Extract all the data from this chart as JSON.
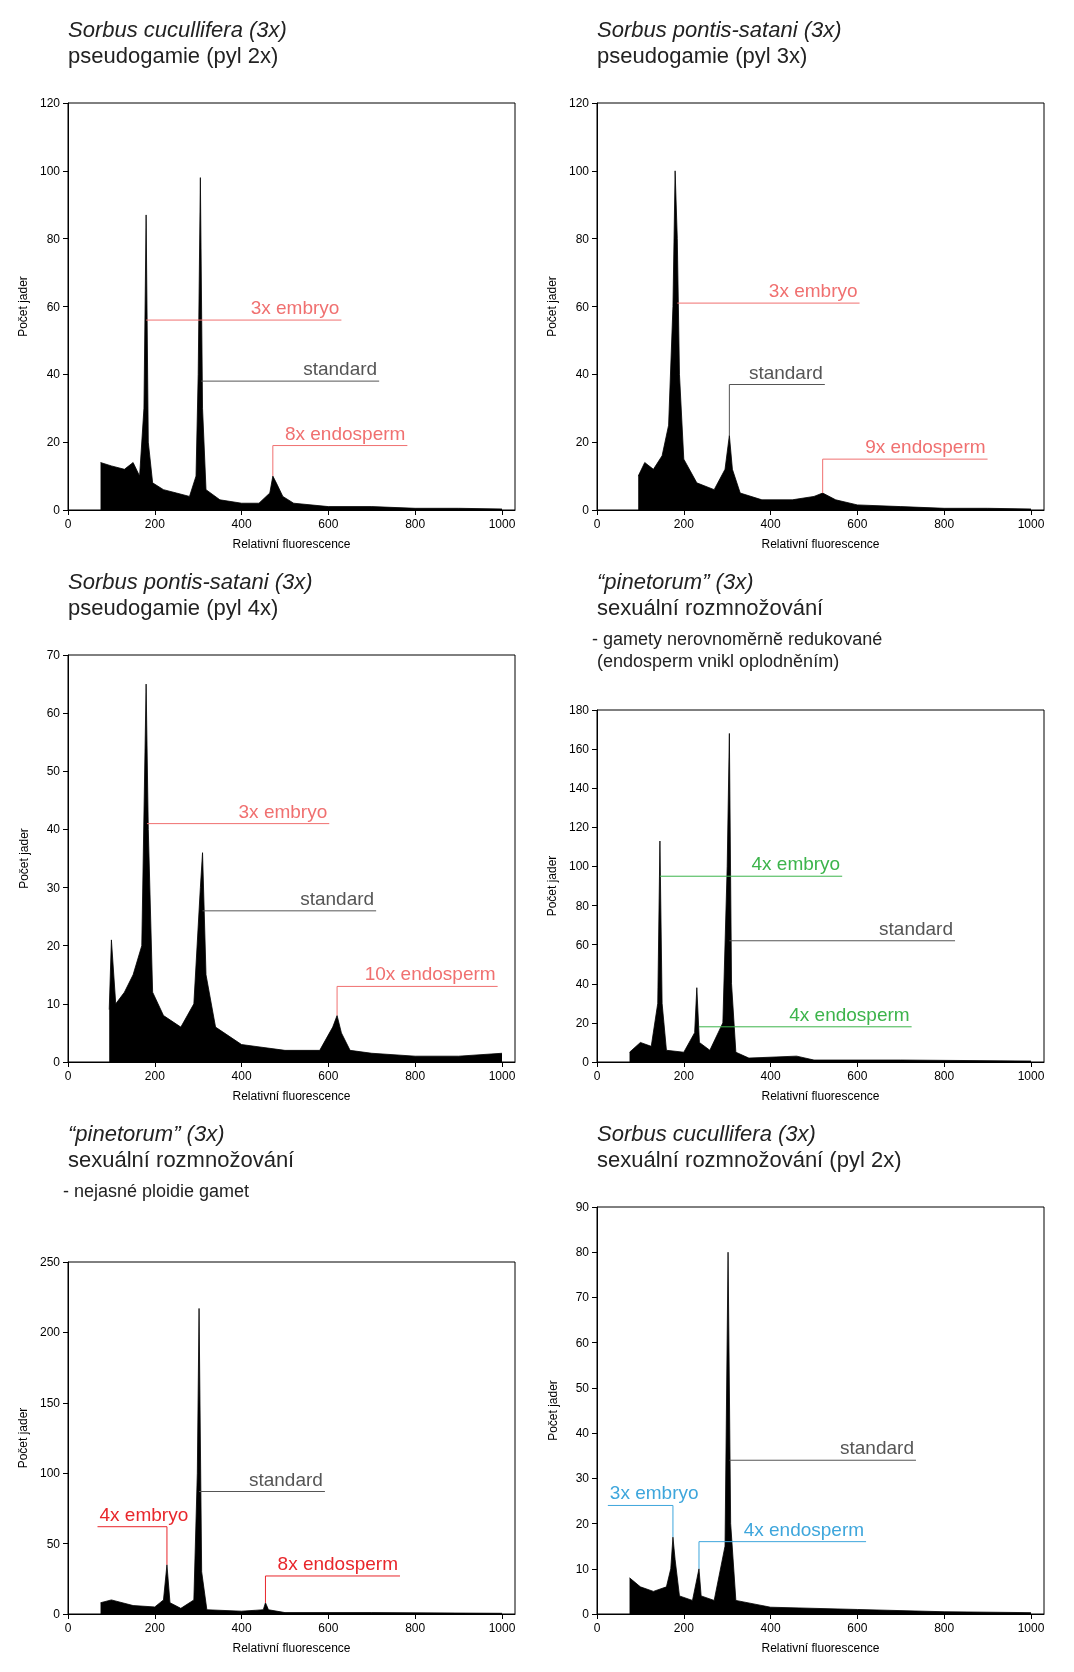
{
  "chart_data": [
    {
      "type": "area",
      "title": "Sorbus cucullifera (3x)",
      "subtitle": "pseudogamie (pyl 2x)",
      "xlabel": "Relativní fluorescence",
      "ylabel": "Počet jader",
      "xlim": [
        0,
        1030
      ],
      "xticks": [
        0,
        200,
        400,
        600,
        800,
        1000
      ],
      "ylim": [
        0,
        120
      ],
      "yticks": [
        0,
        20,
        40,
        60,
        80,
        100,
        120
      ],
      "grid": false,
      "marker": "none",
      "color": "#000000",
      "x": [
        75,
        100,
        130,
        150,
        165,
        175,
        180,
        185,
        195,
        220,
        250,
        280,
        295,
        300,
        305,
        310,
        318,
        350,
        400,
        440,
        465,
        472,
        480,
        495,
        520,
        600,
        700,
        800,
        900,
        1000
      ],
      "values": [
        14,
        13,
        12,
        14,
        10,
        30,
        87,
        20,
        8,
        6,
        5,
        4,
        10,
        40,
        98,
        30,
        6,
        3,
        2,
        2,
        5,
        10,
        8,
        4,
        2,
        1,
        1,
        0.5,
        0.5,
        0.3
      ],
      "annotations": [
        {
          "text": "3x embryo",
          "x": 180,
          "y": 56
        },
        {
          "text": "standard",
          "x": 307,
          "y": 38
        },
        {
          "text": "8x endosperm",
          "x": 472,
          "y": 10
        }
      ]
    },
    {
      "type": "area",
      "title": "Sorbus pontis-satani (3x)",
      "subtitle": "pseudogamie (pyl 3x)",
      "xlabel": "Relativní fluorescence",
      "ylabel": "Počet jader",
      "xlim": [
        0,
        1030
      ],
      "xticks": [
        0,
        200,
        400,
        600,
        800,
        1000
      ],
      "ylim": [
        0,
        120
      ],
      "yticks": [
        0,
        20,
        40,
        60,
        80,
        100,
        120
      ],
      "grid": false,
      "marker": "none",
      "color": "#000000",
      "x": [
        95,
        110,
        130,
        150,
        165,
        175,
        180,
        185,
        190,
        200,
        230,
        270,
        295,
        305,
        312,
        330,
        380,
        450,
        500,
        520,
        550,
        600,
        700,
        800,
        900,
        1000
      ],
      "values": [
        10,
        14,
        12,
        16,
        25,
        60,
        100,
        80,
        40,
        15,
        8,
        6,
        12,
        22,
        12,
        5,
        3,
        3,
        4,
        5,
        3,
        1.5,
        1,
        0.5,
        0.5,
        0.3
      ],
      "annotations": [
        {
          "text": "3x embryo",
          "x": 185,
          "y": 61
        },
        {
          "text": "standard",
          "x": 305,
          "y": 22
        },
        {
          "text": "9x endosperm",
          "x": 520,
          "y": 5
        }
      ]
    },
    {
      "type": "area",
      "title": "Sorbus pontis-satani (3x)",
      "subtitle": "pseudogamie (pyl 4x)",
      "xlabel": "Relativní fluorescence",
      "ylabel": "Počet jader",
      "xlim": [
        0,
        1030
      ],
      "xticks": [
        0,
        200,
        400,
        600,
        800,
        1000
      ],
      "ylim": [
        0,
        70
      ],
      "yticks": [
        0,
        10,
        20,
        30,
        40,
        50,
        60,
        70
      ],
      "grid": false,
      "marker": "none",
      "color": "#000000",
      "x": [
        95,
        100,
        110,
        130,
        150,
        170,
        180,
        185,
        195,
        220,
        260,
        290,
        305,
        310,
        318,
        340,
        400,
        500,
        580,
        610,
        620,
        630,
        650,
        700,
        800,
        900,
        1000
      ],
      "values": [
        9,
        21,
        10,
        12,
        15,
        20,
        65,
        40,
        12,
        8,
        6,
        10,
        30,
        36,
        15,
        6,
        3,
        2,
        2,
        6,
        8,
        5,
        2,
        1.5,
        1,
        1,
        1.5
      ],
      "annotations": [
        {
          "text": "3x embryo",
          "x": 182,
          "y": 41
        },
        {
          "text": "standard",
          "x": 310,
          "y": 26
        },
        {
          "text": "10x endosperm",
          "x": 620,
          "y": 8
        }
      ]
    },
    {
      "type": "area",
      "title": "“pinetorum” (3x)",
      "subtitle": "sexuální rozmnožování",
      "xlabel": "Relativní fluorescence",
      "ylabel": "Počet jader",
      "xlim": [
        0,
        1030
      ],
      "xticks": [
        0,
        200,
        400,
        600,
        800,
        1000
      ],
      "ylim": [
        0,
        180
      ],
      "yticks": [
        0,
        20,
        40,
        60,
        80,
        100,
        120,
        140,
        160,
        180
      ],
      "grid": false,
      "marker": "none",
      "color": "#000000",
      "x": [
        75,
        100,
        125,
        140,
        145,
        150,
        160,
        200,
        225,
        230,
        236,
        260,
        290,
        300,
        305,
        310,
        320,
        350,
        460,
        500,
        700,
        1000
      ],
      "values": [
        5,
        10,
        8,
        30,
        113,
        30,
        6,
        5,
        15,
        38,
        10,
        6,
        20,
        100,
        168,
        40,
        5,
        2,
        3,
        1,
        1,
        0.5
      ],
      "annotations": [
        "- gamety nerovnoměrně redukované\n (endosperm vnikl oplodněním)",
        {
          "text": "4x embryo",
          "x": 145,
          "y": 95
        },
        {
          "text": "standard",
          "x": 305,
          "y": 62
        },
        {
          "text": "4x endosperm",
          "x": 235,
          "y": 18
        }
      ]
    },
    {
      "type": "area",
      "title": "“pinetorum” (3x)",
      "subtitle": "sexuální rozmnožování",
      "xlabel": "Relativní fluorescence",
      "ylabel": "Počet jader",
      "xlim": [
        0,
        1030
      ],
      "xticks": [
        0,
        200,
        400,
        600,
        800,
        1000
      ],
      "ylim": [
        0,
        250
      ],
      "yticks": [
        0,
        50,
        100,
        150,
        200,
        250
      ],
      "grid": false,
      "marker": "none",
      "color": "#000000",
      "x": [
        75,
        100,
        150,
        200,
        220,
        228,
        235,
        260,
        290,
        298,
        302,
        308,
        320,
        400,
        450,
        455,
        462,
        500,
        700,
        1000
      ],
      "values": [
        8,
        10,
        6,
        5,
        10,
        35,
        8,
        4,
        10,
        100,
        217,
        30,
        3,
        2,
        3,
        8,
        3,
        1,
        1,
        0.5
      ],
      "annotations": [
        "- nejasné ploidie gamet",
        {
          "text": "4x embryo",
          "x": 228,
          "y": 35
        },
        {
          "text": "standard",
          "x": 302,
          "y": 87
        },
        {
          "text": "8x endosperm",
          "x": 455,
          "y": 8
        }
      ]
    },
    {
      "type": "area",
      "title": "Sorbus cucullifera (3x)",
      "subtitle": "sexuální rozmnožování (pyl 2x)",
      "xlabel": "Relativní fluorescence",
      "ylabel": "Počet jader",
      "xlim": [
        0,
        1030
      ],
      "xticks": [
        0,
        200,
        400,
        600,
        800,
        1000
      ],
      "ylim": [
        0,
        90
      ],
      "yticks": [
        0,
        10,
        20,
        30,
        40,
        50,
        60,
        70,
        80,
        90
      ],
      "grid": false,
      "marker": "none",
      "color": "#000000",
      "x": [
        75,
        100,
        130,
        160,
        170,
        175,
        180,
        190,
        220,
        235,
        240,
        270,
        295,
        302,
        308,
        320,
        400,
        600,
        800,
        1000
      ],
      "values": [
        8,
        6,
        5,
        6,
        10,
        17,
        12,
        4,
        3,
        10,
        4,
        3,
        15,
        80,
        20,
        3,
        1.5,
        1,
        0.5,
        0.3
      ],
      "annotations": [
        {
          "text": "3x embryo",
          "x": 175,
          "y": 17
        },
        {
          "text": "standard",
          "x": 305,
          "y": 34
        },
        {
          "text": "4x endosperm",
          "x": 235,
          "y": 10
        }
      ]
    }
  ]
}
